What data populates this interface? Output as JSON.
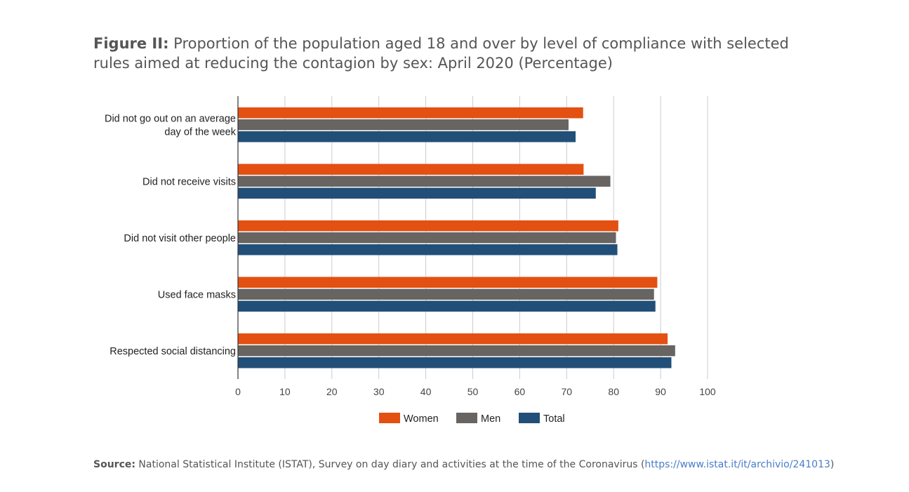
{
  "title": {
    "prefix": "Figure II:",
    "text": "Proportion of the population aged 18 and over by level of compliance with selected rules aimed at reducing the contagion by sex: April 2020 (Percentage)"
  },
  "source": {
    "label": "Source:",
    "text": "National Statistical Institute (ISTAT), Survey on day diary and activities at the time of the Coronavirus (",
    "link": "https://www.istat.it/it/archivio/241013",
    "suffix": ")"
  },
  "chart_data": {
    "type": "bar",
    "orientation": "horizontal",
    "categories": [
      [
        "Did not go out on an average",
        "day of the week"
      ],
      [
        "Did not receive visits"
      ],
      [
        "Did not visit other people"
      ],
      [
        "Used face masks"
      ],
      [
        "Respected social distancing"
      ]
    ],
    "series": [
      {
        "name": "Women",
        "color": "#e35012",
        "values": [
          73.5,
          73.6,
          81.0,
          89.3,
          91.5
        ]
      },
      {
        "name": "Men",
        "color": "#686462",
        "values": [
          70.4,
          79.3,
          80.5,
          88.6,
          93.1
        ]
      },
      {
        "name": "Total",
        "color": "#214f78",
        "values": [
          71.9,
          76.2,
          80.8,
          88.9,
          92.3
        ]
      }
    ],
    "xlim": [
      0,
      100
    ],
    "xticks": [
      0,
      10,
      20,
      30,
      40,
      50,
      60,
      70,
      80,
      90,
      100
    ],
    "grid": true,
    "legend_position": "bottom"
  }
}
